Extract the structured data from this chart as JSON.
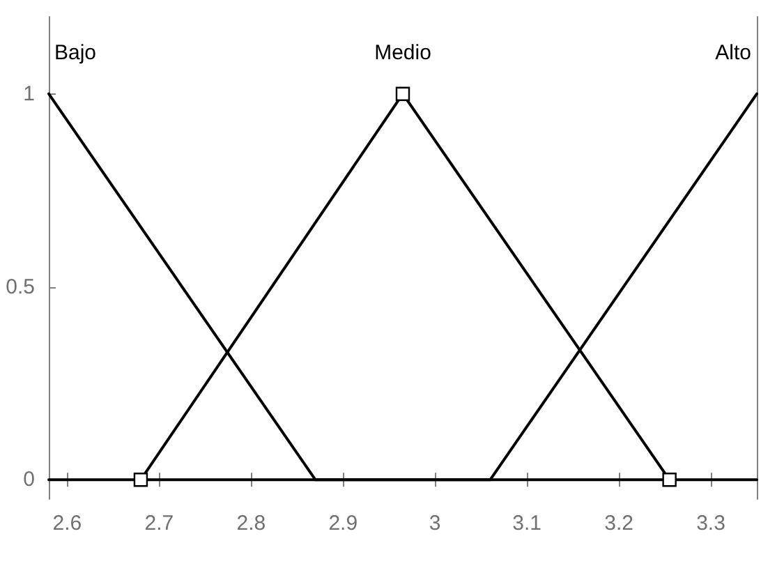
{
  "chart_data": {
    "type": "line",
    "xlim": [
      2.58,
      3.35
    ],
    "ylim": [
      -0.05,
      1.2
    ],
    "xticks": [
      2.6,
      2.7,
      2.8,
      2.9,
      3,
      3.1,
      3.2,
      3.3
    ],
    "yticks": [
      0,
      0.5,
      1
    ],
    "grid": false,
    "legend": false,
    "series": [
      {
        "name": "Bajo",
        "color": "#000000",
        "x": [
          2.58,
          2.87,
          3.35
        ],
        "values": [
          1,
          0,
          0
        ],
        "marker": "none"
      },
      {
        "name": "Medio",
        "color": "#000000",
        "x": [
          2.68,
          2.965,
          3.255
        ],
        "values": [
          0,
          1,
          0
        ],
        "marker": "square"
      },
      {
        "name": "Alto",
        "color": "#000000",
        "x": [
          2.58,
          3.06,
          3.35
        ],
        "values": [
          0,
          0,
          1
        ],
        "marker": "none"
      }
    ]
  }
}
